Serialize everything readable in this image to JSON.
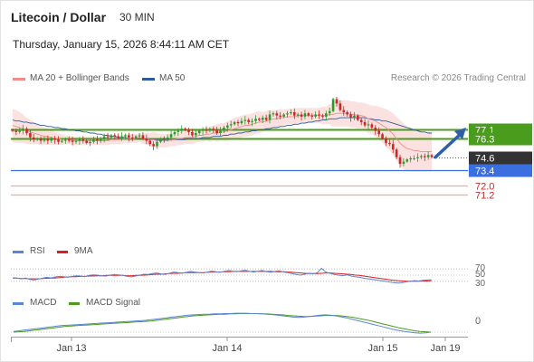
{
  "header": {
    "instrument": "Litecoin / Dollar",
    "timeframe": "30 MIN",
    "datetime": "Thursday, January 15, 2026 8:44:11 AM CET"
  },
  "legend": {
    "items": [
      {
        "label": "MA 20 + Bollinger Bands",
        "color": "#f08c8c"
      },
      {
        "label": "MA 50",
        "color": "#2f5a9e"
      }
    ],
    "copyright": "Research © 2026 Trading Central"
  },
  "rsi_legend": {
    "items": [
      {
        "label": "RSI",
        "color": "#5b86d6"
      },
      {
        "label": "9MA",
        "color": "#d81e1e"
      }
    ]
  },
  "macd_legend": {
    "items": [
      {
        "label": "MACD",
        "color": "#5b86d6"
      },
      {
        "label": "MACD Signal",
        "color": "#4a9c1c"
      }
    ]
  },
  "colors": {
    "bull_candle": "#2e9a2e",
    "bear_candle": "#d32424",
    "resistance": "#4a9c1c",
    "support": "#3b6fe0",
    "target_line": "#f2a6a6",
    "arrow": "#2f5fa8",
    "band_fill": "#fbdcdc",
    "pivot_tag": "#333333"
  },
  "chart_data": {
    "type": "candlestick",
    "ylim": [
      70.2,
      80.6
    ],
    "x_ticks": [
      "Jan 13",
      "Jan 14",
      "Jan 15",
      "Jan 19"
    ],
    "levels": [
      {
        "value": 77.1,
        "label": "77.1",
        "kind": "resistance"
      },
      {
        "value": 76.3,
        "label": "76.3",
        "kind": "resistance"
      },
      {
        "value": 74.6,
        "label": "74.6",
        "kind": "pivot"
      },
      {
        "value": 73.4,
        "label": "73.4",
        "kind": "support"
      },
      {
        "value": 72.0,
        "label": "72.0",
        "kind": "target"
      },
      {
        "value": 71.2,
        "label": "71.2",
        "kind": "target"
      }
    ],
    "close": [
      77.0,
      76.9,
      77.0,
      77.2,
      76.8,
      76.4,
      76.2,
      76.3,
      76.1,
      76.2,
      76.1,
      76.3,
      76.2,
      76.0,
      76.1,
      76.2,
      76.1,
      76.0,
      76.1,
      76.2,
      76.1,
      75.9,
      76.0,
      76.2,
      76.1,
      76.3,
      76.5,
      76.4,
      76.6,
      76.5,
      76.4,
      76.5,
      76.6,
      76.4,
      76.3,
      76.5,
      76.6,
      76.3,
      76.1,
      75.8,
      75.6,
      76.0,
      76.3,
      76.2,
      76.4,
      76.7,
      76.9,
      77.0,
      77.2,
      77.1,
      76.9,
      76.6,
      76.8,
      77.0,
      77.1,
      77.0,
      77.2,
      77.1,
      76.8,
      77.0,
      77.3,
      77.5,
      77.6,
      77.8,
      77.7,
      77.9,
      78.0,
      77.8,
      77.9,
      78.1,
      78.0,
      78.2,
      78.0,
      78.5,
      78.6,
      78.4,
      78.3,
      78.5,
      78.6,
      78.7,
      78.4,
      78.5,
      78.3,
      78.6,
      78.4,
      78.3,
      78.5,
      78.4,
      78.3,
      78.6,
      78.8,
      79.9,
      79.5,
      78.9,
      78.7,
      78.5,
      78.2,
      78.4,
      78.0,
      77.8,
      77.5,
      77.6,
      77.3,
      77.0,
      76.7,
      76.3,
      75.9,
      75.8,
      75.3,
      74.6,
      74.0,
      74.2,
      74.4,
      74.5,
      74.5,
      74.6,
      74.7,
      74.6,
      74.8,
      74.6
    ],
    "ma20": [
      77.5,
      77.4,
      77.3,
      77.2,
      77.0,
      76.9,
      76.8,
      76.7,
      76.6,
      76.5,
      76.5,
      76.4,
      76.3,
      76.3,
      76.2,
      76.2,
      76.2,
      76.1,
      76.1,
      76.1,
      76.1,
      76.1,
      76.1,
      76.1,
      76.1,
      76.1,
      76.1,
      76.1,
      76.2,
      76.2,
      76.2,
      76.2,
      76.3,
      76.3,
      76.3,
      76.3,
      76.4,
      76.3,
      76.3,
      76.2,
      76.2,
      76.1,
      76.1,
      76.1,
      76.1,
      76.2,
      76.2,
      76.3,
      76.3,
      76.4,
      76.4,
      76.4,
      76.5,
      76.6,
      76.6,
      76.7,
      76.7,
      76.8,
      76.8,
      76.9,
      76.9,
      77.0,
      77.1,
      77.2,
      77.3,
      77.4,
      77.5,
      77.5,
      77.6,
      77.7,
      77.8,
      77.8,
      77.9,
      78.0,
      78.1,
      78.1,
      78.2,
      78.2,
      78.3,
      78.3,
      78.3,
      78.4,
      78.4,
      78.4,
      78.4,
      78.4,
      78.4,
      78.4,
      78.4,
      78.4,
      78.5,
      78.5,
      78.6,
      78.6,
      78.6,
      78.6,
      78.5,
      78.5,
      78.4,
      78.4,
      78.3,
      78.1,
      78.0,
      77.9,
      77.7,
      77.5,
      77.3,
      77.0,
      76.7,
      76.3,
      75.9,
      75.6,
      75.4,
      75.3,
      75.2,
      75.2,
      75.1,
      75.1,
      75.1,
      75.1
    ],
    "ma50": [
      78.0,
      77.9,
      77.9,
      77.8,
      77.8,
      77.7,
      77.7,
      77.6,
      77.5,
      77.5,
      77.4,
      77.4,
      77.3,
      77.3,
      77.2,
      77.2,
      77.1,
      77.1,
      77.0,
      77.0,
      76.9,
      76.9,
      76.8,
      76.8,
      76.7,
      76.7,
      76.6,
      76.6,
      76.5,
      76.5,
      76.4,
      76.4,
      76.4,
      76.3,
      76.3,
      76.3,
      76.3,
      76.3,
      76.2,
      76.2,
      76.2,
      76.2,
      76.2,
      76.2,
      76.2,
      76.2,
      76.2,
      76.2,
      76.2,
      76.2,
      76.3,
      76.3,
      76.3,
      76.3,
      76.4,
      76.4,
      76.4,
      76.5,
      76.5,
      76.5,
      76.6,
      76.6,
      76.7,
      76.7,
      76.8,
      76.8,
      76.9,
      76.9,
      77.0,
      77.0,
      77.1,
      77.1,
      77.2,
      77.2,
      77.3,
      77.3,
      77.4,
      77.4,
      77.5,
      77.5,
      77.6,
      77.6,
      77.7,
      77.7,
      77.8,
      77.8,
      77.9,
      77.9,
      78.0,
      78.0,
      78.1,
      78.1,
      78.1,
      78.2,
      78.2,
      78.2,
      78.2,
      78.2,
      78.2,
      78.2,
      78.2,
      78.1,
      78.1,
      78.0,
      78.0,
      77.9,
      77.9,
      77.8,
      77.7,
      77.6,
      77.5,
      77.4,
      77.3,
      77.2,
      77.1,
      77.0,
      76.9,
      76.9,
      76.8,
      76.8
    ],
    "bb_width": [
      1.5,
      1.5,
      1.4,
      1.3,
      1.2,
      1.1,
      1.0,
      0.9,
      0.9,
      0.8,
      0.7,
      0.7,
      0.6,
      0.5,
      0.5,
      0.4,
      0.4,
      0.4,
      0.4,
      0.4,
      0.4,
      0.4,
      0.4,
      0.4,
      0.4,
      0.4,
      0.4,
      0.4,
      0.4,
      0.4,
      0.4,
      0.4,
      0.4,
      0.4,
      0.4,
      0.4,
      0.4,
      0.5,
      0.5,
      0.6,
      0.7,
      0.7,
      0.6,
      0.6,
      0.6,
      0.6,
      0.6,
      0.6,
      0.6,
      0.6,
      0.6,
      0.6,
      0.6,
      0.6,
      0.6,
      0.6,
      0.7,
      0.7,
      0.8,
      0.8,
      0.8,
      0.9,
      0.9,
      1.0,
      1.0,
      1.0,
      1.0,
      1.0,
      1.0,
      1.0,
      1.0,
      0.9,
      0.9,
      0.9,
      0.8,
      0.8,
      0.8,
      0.7,
      0.7,
      0.7,
      0.7,
      0.7,
      0.7,
      0.7,
      0.7,
      0.7,
      0.7,
      0.7,
      0.8,
      0.8,
      0.9,
      1.1,
      1.2,
      1.2,
      1.2,
      1.2,
      1.2,
      1.2,
      1.2,
      1.2,
      1.2,
      1.3,
      1.3,
      1.4,
      1.5,
      1.6,
      1.7,
      1.8,
      1.9,
      2.0,
      2.1,
      2.1,
      2.0,
      2.0,
      1.9,
      1.9,
      1.8,
      1.8,
      1.8,
      1.8
    ],
    "rsi": {
      "levels": [
        70,
        50,
        30
      ],
      "ylim": [
        0,
        100
      ],
      "rsi": [
        42,
        40,
        38,
        41,
        36,
        34,
        37,
        40,
        43,
        41,
        44,
        46,
        45,
        43,
        46,
        48,
        47,
        45,
        49,
        51,
        50,
        48,
        47,
        50,
        52,
        51,
        49,
        46,
        44,
        47,
        50,
        53,
        52,
        55,
        57,
        54,
        52,
        56,
        60,
        58,
        56,
        59,
        62,
        60,
        58,
        57,
        60,
        63,
        61,
        59,
        62,
        65,
        63,
        61,
        64,
        66,
        62,
        60,
        63,
        65,
        61,
        59,
        62,
        64,
        60,
        58,
        55,
        52,
        50,
        53,
        56,
        54,
        58,
        72,
        60,
        56,
        52,
        50,
        48,
        51,
        47,
        45,
        43,
        40,
        38,
        36,
        34,
        32,
        30,
        28,
        26,
        24,
        25,
        28,
        30,
        32,
        31,
        33,
        34,
        35
      ],
      "ma9": [
        40,
        40,
        39,
        39,
        38,
        38,
        38,
        39,
        40,
        40,
        41,
        42,
        43,
        44,
        45,
        45,
        46,
        46,
        47,
        47,
        48,
        48,
        49,
        49,
        49,
        49,
        49,
        48,
        48,
        49,
        49,
        50,
        51,
        52,
        53,
        53,
        54,
        55,
        56,
        56,
        57,
        58,
        58,
        58,
        58,
        58,
        59,
        60,
        60,
        60,
        61,
        61,
        62,
        62,
        62,
        62,
        62,
        62,
        62,
        62,
        62,
        62,
        61,
        61,
        61,
        60,
        59,
        58,
        57,
        56,
        55,
        55,
        55,
        56,
        57,
        57,
        56,
        55,
        54,
        53,
        52,
        50,
        49,
        47,
        45,
        43,
        41,
        39,
        37,
        35,
        33,
        32,
        31,
        30,
        30,
        30,
        30,
        31,
        31,
        32
      ]
    },
    "macd": {
      "zero_label": "0",
      "macd": [
        0.02,
        0.04,
        0.06,
        0.08,
        0.1,
        0.12,
        0.14,
        0.16,
        0.18,
        0.2,
        0.21,
        0.22,
        0.23,
        0.24,
        0.25,
        0.26,
        0.27,
        0.28,
        0.29,
        0.3,
        0.31,
        0.32,
        0.33,
        0.34,
        0.35,
        0.36,
        0.38,
        0.4,
        0.42,
        0.44,
        0.46,
        0.48,
        0.5,
        0.52,
        0.53,
        0.54,
        0.55,
        0.55,
        0.56,
        0.56,
        0.57,
        0.57,
        0.58,
        0.58,
        0.58,
        0.57,
        0.57,
        0.56,
        0.55,
        0.54,
        0.52,
        0.5,
        0.48,
        0.46,
        0.45,
        0.46,
        0.48,
        0.5,
        0.52,
        0.53,
        0.52,
        0.5,
        0.47,
        0.44,
        0.4,
        0.36,
        0.32,
        0.28,
        0.24,
        0.2,
        0.16,
        0.12,
        0.08,
        0.05,
        0.02,
        0.0,
        -0.02,
        -0.03,
        -0.02,
        0.0
      ],
      "signal": [
        0.0,
        0.01,
        0.02,
        0.04,
        0.06,
        0.08,
        0.1,
        0.12,
        0.14,
        0.16,
        0.18,
        0.19,
        0.2,
        0.21,
        0.22,
        0.23,
        0.24,
        0.25,
        0.26,
        0.27,
        0.28,
        0.29,
        0.3,
        0.31,
        0.32,
        0.33,
        0.34,
        0.36,
        0.38,
        0.4,
        0.42,
        0.44,
        0.46,
        0.48,
        0.5,
        0.51,
        0.52,
        0.53,
        0.54,
        0.55,
        0.55,
        0.56,
        0.56,
        0.57,
        0.57,
        0.57,
        0.57,
        0.56,
        0.56,
        0.55,
        0.54,
        0.53,
        0.51,
        0.5,
        0.49,
        0.48,
        0.48,
        0.49,
        0.5,
        0.51,
        0.51,
        0.51,
        0.5,
        0.48,
        0.46,
        0.43,
        0.4,
        0.37,
        0.33,
        0.29,
        0.25,
        0.21,
        0.17,
        0.13,
        0.1,
        0.07,
        0.04,
        0.02,
        0.01,
        0.0
      ]
    }
  }
}
